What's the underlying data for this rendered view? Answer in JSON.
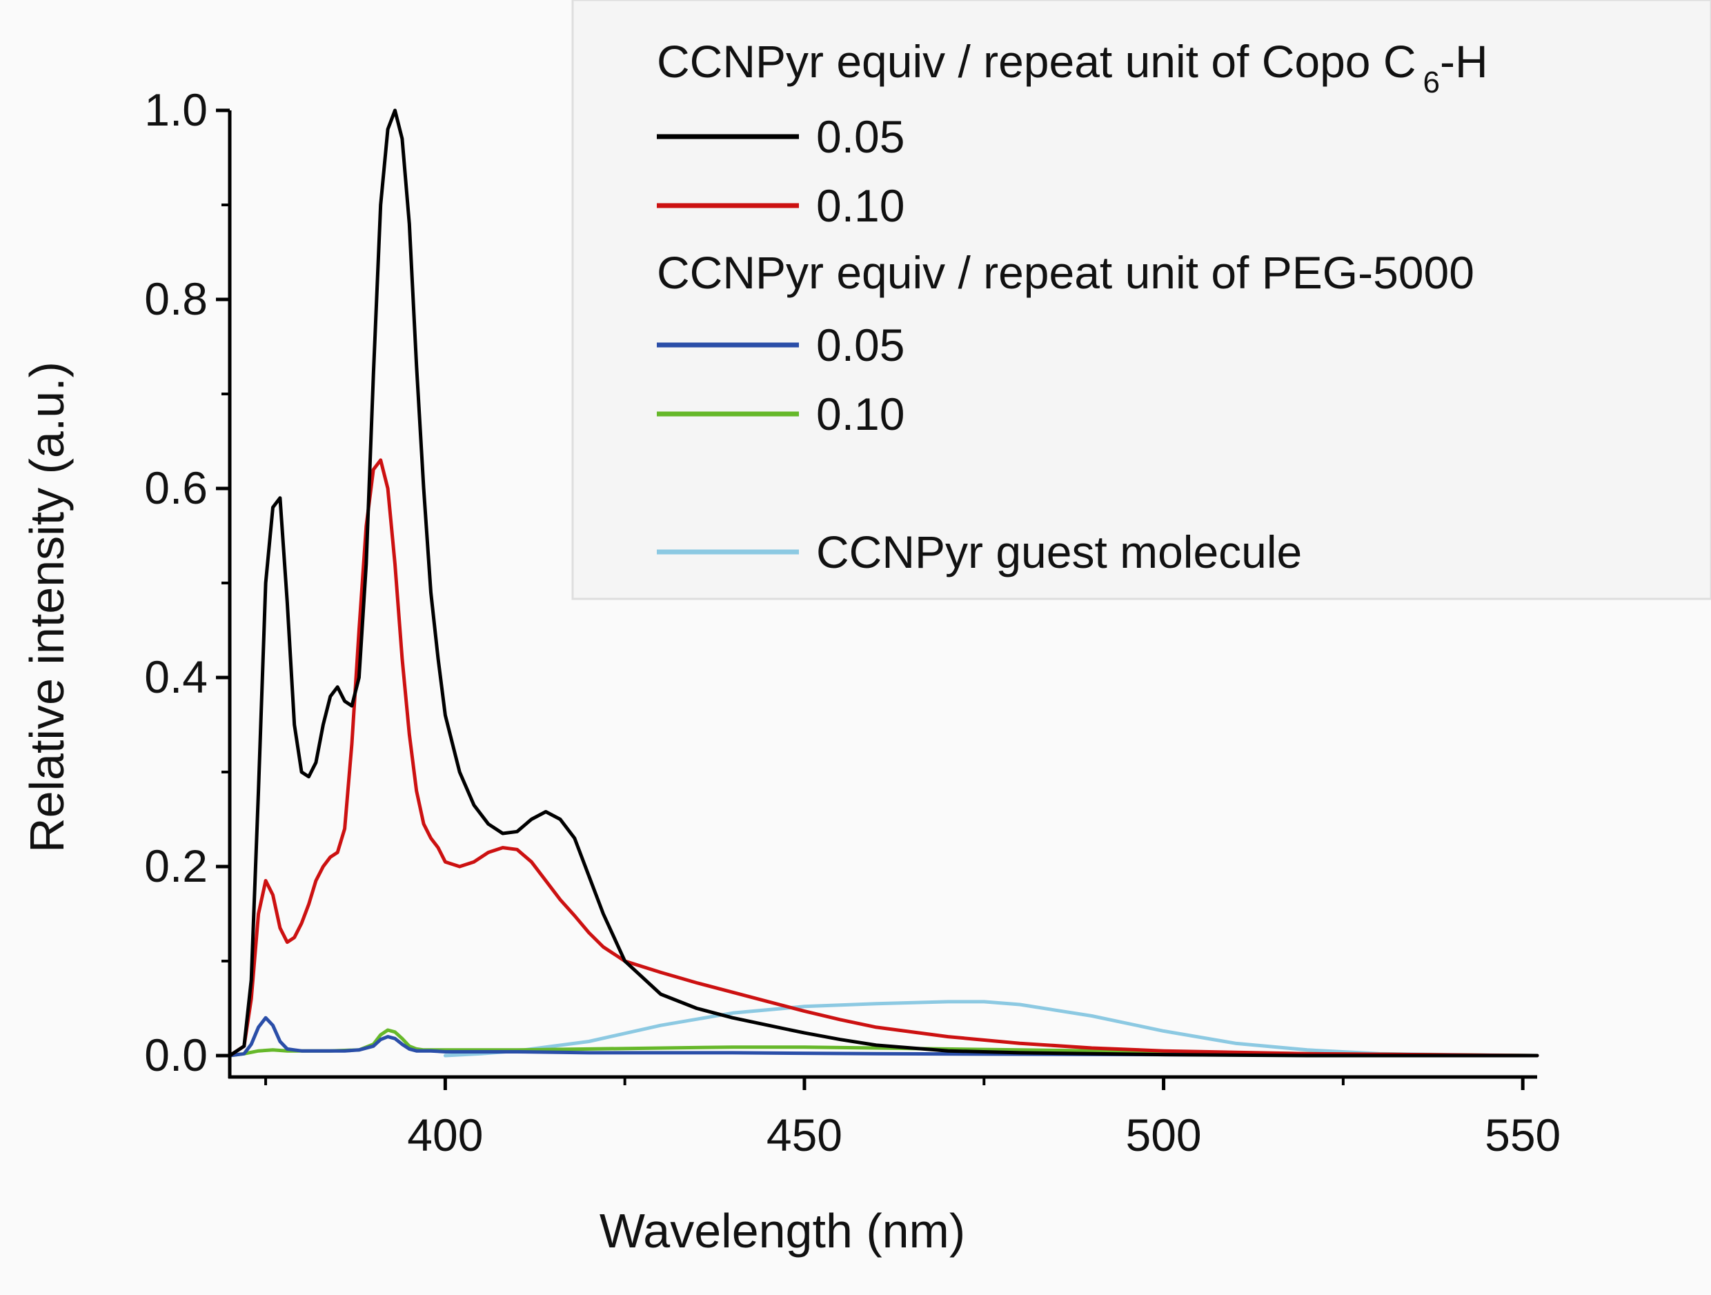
{
  "chart_data": {
    "type": "line",
    "xlabel": "Wavelength (nm)",
    "ylabel": "Relative intensity (a.u.)",
    "xlim": [
      370,
      552
    ],
    "ylim": [
      0,
      1.0
    ],
    "x_ticks": [
      400,
      450,
      500,
      550
    ],
    "y_ticks": [
      0.0,
      0.2,
      0.4,
      0.6,
      0.8,
      1.0
    ],
    "x_tick_labels": [
      "400",
      "450",
      "500",
      "550"
    ],
    "y_tick_labels": [
      "0.0",
      "0.2",
      "0.4",
      "0.6",
      "0.8",
      "1.0"
    ],
    "grid": false,
    "legend_position": "top-right",
    "legend": {
      "group1_title": "CCNPyr equiv / repeat unit of Copo C",
      "group1_title_sub": "6",
      "group1_title_tail": "-H",
      "group2_title": "CCNPyr equiv / repeat unit of PEG-5000"
    },
    "series": [
      {
        "name": "0.05",
        "group": 1,
        "color": "#000000",
        "x": [
          370,
          372,
          373,
          374,
          375,
          376,
          377,
          378,
          379,
          380,
          381,
          382,
          383,
          384,
          385,
          386,
          387,
          388,
          389,
          390,
          391,
          392,
          393,
          394,
          395,
          396,
          397,
          398,
          399,
          400,
          402,
          404,
          406,
          408,
          410,
          412,
          414,
          416,
          418,
          420,
          422,
          425,
          430,
          435,
          440,
          445,
          450,
          455,
          460,
          470,
          480,
          500,
          520,
          552
        ],
        "y": [
          0.0,
          0.01,
          0.08,
          0.28,
          0.5,
          0.58,
          0.59,
          0.48,
          0.35,
          0.3,
          0.295,
          0.31,
          0.35,
          0.38,
          0.39,
          0.375,
          0.37,
          0.4,
          0.52,
          0.72,
          0.9,
          0.98,
          1.0,
          0.97,
          0.88,
          0.73,
          0.6,
          0.49,
          0.42,
          0.36,
          0.3,
          0.265,
          0.245,
          0.235,
          0.237,
          0.25,
          0.258,
          0.25,
          0.23,
          0.19,
          0.15,
          0.1,
          0.065,
          0.05,
          0.04,
          0.032,
          0.024,
          0.017,
          0.011,
          0.005,
          0.003,
          0.001,
          0.0,
          0.0
        ]
      },
      {
        "name": "0.10",
        "group": 1,
        "color": "#cc1111",
        "x": [
          370,
          372,
          373,
          374,
          375,
          376,
          377,
          378,
          379,
          380,
          381,
          382,
          383,
          384,
          385,
          386,
          387,
          388,
          389,
          390,
          391,
          392,
          393,
          394,
          395,
          396,
          397,
          398,
          399,
          400,
          402,
          404,
          406,
          408,
          410,
          412,
          414,
          416,
          418,
          420,
          422,
          425,
          430,
          435,
          440,
          445,
          450,
          455,
          460,
          470,
          480,
          490,
          500,
          520,
          552
        ],
        "y": [
          0.0,
          0.01,
          0.06,
          0.15,
          0.185,
          0.17,
          0.135,
          0.12,
          0.125,
          0.14,
          0.16,
          0.185,
          0.2,
          0.21,
          0.215,
          0.24,
          0.33,
          0.45,
          0.56,
          0.62,
          0.63,
          0.6,
          0.52,
          0.42,
          0.34,
          0.28,
          0.245,
          0.23,
          0.22,
          0.205,
          0.2,
          0.205,
          0.215,
          0.22,
          0.218,
          0.205,
          0.185,
          0.165,
          0.148,
          0.13,
          0.115,
          0.1,
          0.088,
          0.077,
          0.067,
          0.057,
          0.047,
          0.038,
          0.03,
          0.02,
          0.013,
          0.008,
          0.005,
          0.002,
          0.0
        ]
      },
      {
        "name": "0.05",
        "group": 2,
        "color": "#2a4ea8",
        "x": [
          370,
          372,
          373,
          374,
          375,
          376,
          377,
          378,
          379,
          380,
          382,
          384,
          386,
          388,
          390,
          391,
          392,
          393,
          394,
          395,
          396,
          397,
          398,
          400,
          405,
          410,
          420,
          440,
          460,
          500,
          552
        ],
        "y": [
          0.0,
          0.002,
          0.012,
          0.03,
          0.04,
          0.032,
          0.015,
          0.007,
          0.006,
          0.005,
          0.005,
          0.005,
          0.005,
          0.006,
          0.01,
          0.017,
          0.02,
          0.018,
          0.012,
          0.007,
          0.005,
          0.005,
          0.005,
          0.004,
          0.004,
          0.004,
          0.003,
          0.003,
          0.002,
          0.001,
          0.0
        ]
      },
      {
        "name": "0.10",
        "group": 2,
        "color": "#66b82a",
        "x": [
          370,
          372,
          374,
          376,
          378,
          380,
          384,
          388,
          390,
          391,
          392,
          393,
          394,
          395,
          396,
          397,
          398,
          400,
          405,
          410,
          420,
          440,
          450,
          460,
          480,
          500,
          520,
          552
        ],
        "y": [
          0.0,
          0.002,
          0.005,
          0.006,
          0.005,
          0.005,
          0.005,
          0.006,
          0.012,
          0.022,
          0.027,
          0.025,
          0.018,
          0.01,
          0.007,
          0.006,
          0.006,
          0.006,
          0.006,
          0.006,
          0.007,
          0.009,
          0.009,
          0.008,
          0.006,
          0.004,
          0.002,
          0.0
        ]
      },
      {
        "name": "CCNPyr guest molecule",
        "group": 3,
        "color": "#8cc9e2",
        "x": [
          400,
          405,
          410,
          420,
          430,
          440,
          450,
          460,
          470,
          475,
          480,
          490,
          500,
          510,
          520,
          530,
          540,
          552
        ],
        "y": [
          0.0,
          0.002,
          0.005,
          0.015,
          0.032,
          0.045,
          0.052,
          0.055,
          0.057,
          0.057,
          0.054,
          0.042,
          0.026,
          0.013,
          0.006,
          0.002,
          0.001,
          0.0
        ]
      }
    ]
  }
}
